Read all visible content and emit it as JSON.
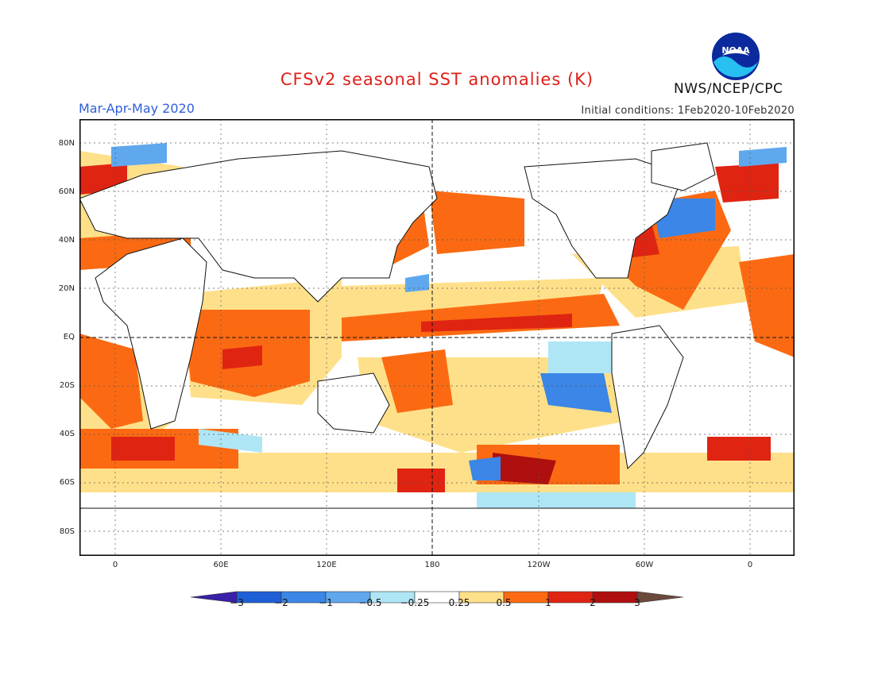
{
  "title": "CFSv2 seasonal SST anomalies (K)",
  "period": "Mar-Apr-May 2020",
  "initial_conditions": "Initial conditions: 1Feb2020-10Feb2020",
  "organization": "NWS/NCEP/CPC",
  "logo_text": "NOAA",
  "lat_labels": [
    "80N",
    "60N",
    "40N",
    "20N",
    "EQ",
    "20S",
    "40S",
    "60S",
    "80S"
  ],
  "lon_labels": [
    "0",
    "60E",
    "120E",
    "180",
    "120W",
    "60W",
    "0"
  ],
  "colorbar": {
    "labels": [
      "−3",
      "−2",
      "−1",
      "−0.5",
      "−0.25",
      "0.25",
      "0.5",
      "1",
      "2",
      "3"
    ],
    "colors": [
      "#3a1fa8",
      "#1f5fd6",
      "#3b86e6",
      "#5fa8ee",
      "#aee6f5",
      "#ffffff",
      "#ffe08a",
      "#fb6a12",
      "#e02412",
      "#b00f0f",
      "#6b4a3e"
    ]
  },
  "map_features": {
    "projection": "cylindrical equidistant",
    "lon_range": [
      "20W",
      "20E (wrap)"
    ],
    "lat_range": [
      "90S",
      "90N"
    ],
    "reference_lines": [
      "EQ",
      "180"
    ],
    "warm_regions": [
      "North Pacific",
      "Tropical central Pacific",
      "Indian Ocean",
      "North Atlantic (subtropical)",
      "Southern Ocean bands"
    ],
    "cool_regions": [
      "North Atlantic (subpolar)",
      "Southeast Pacific",
      "South Pacific 60S"
    ]
  }
}
